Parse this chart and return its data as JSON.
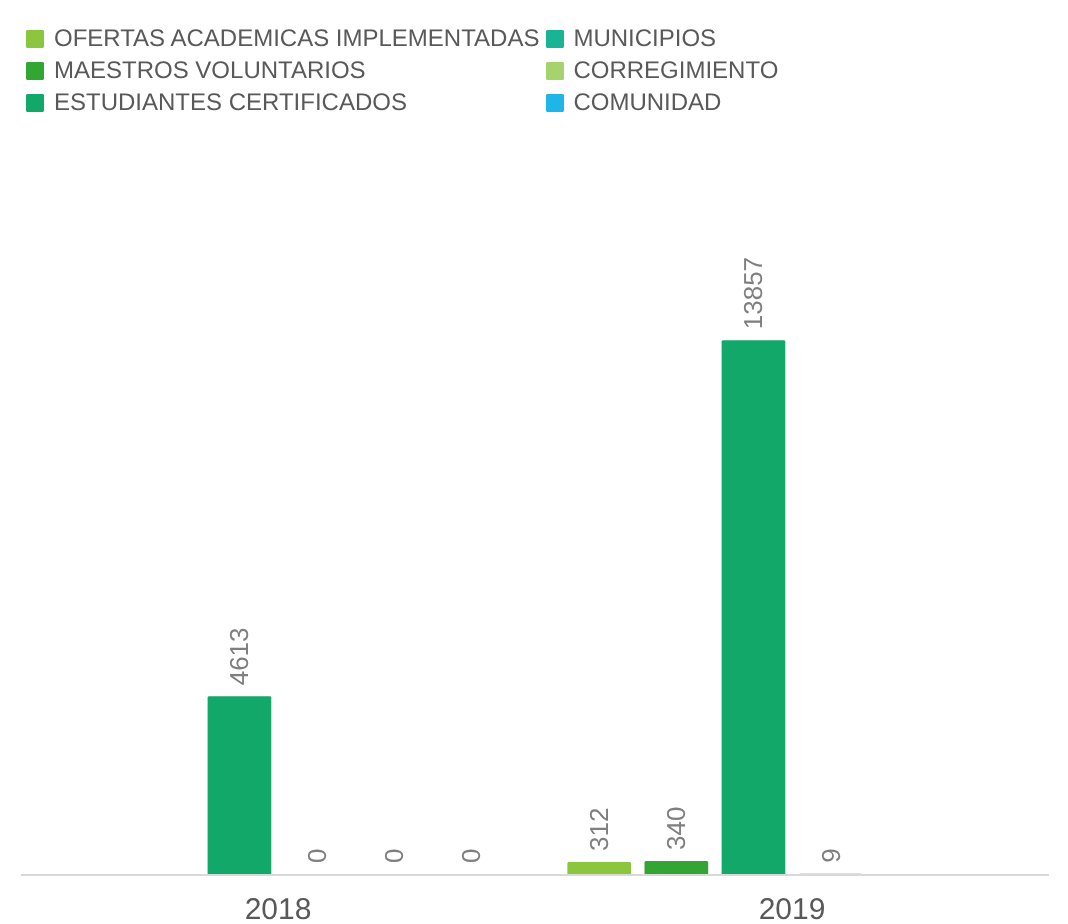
{
  "chart_data": {
    "type": "bar",
    "categories": [
      "2018",
      "2019"
    ],
    "data_labels": true,
    "legend": "top",
    "series": [
      {
        "name": "OFERTAS ACADEMICAS IMPLEMENTADAS",
        "color": "#8cc63f",
        "values": [
          null,
          312
        ]
      },
      {
        "name": "MAESTROS VOLUNTARIOS",
        "color": "#33a532",
        "values": [
          null,
          340
        ]
      },
      {
        "name": "ESTUDIANTES CERTIFICADOS",
        "color": "#12a86a",
        "values": [
          4613,
          13857
        ]
      },
      {
        "name": "MUNICIPIOS",
        "color": "#1ab394",
        "values": [
          0,
          9
        ]
      },
      {
        "name": "CORREGIMIENTO",
        "color": "#a5d36e",
        "values": [
          0,
          null
        ]
      },
      {
        "name": "COMUNIDAD",
        "color": "#1fb5e8",
        "values": [
          0,
          null
        ]
      }
    ]
  }
}
